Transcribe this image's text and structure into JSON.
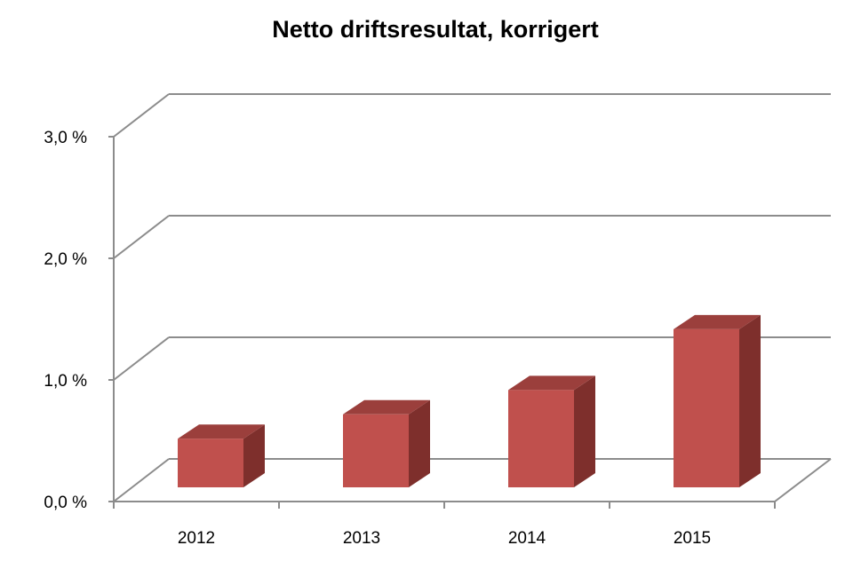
{
  "chart_data": {
    "type": "bar",
    "title": "Netto driftsresultat, korrigert",
    "categories": [
      "2012",
      "2013",
      "2014",
      "2015"
    ],
    "values": [
      0.4,
      0.6,
      0.8,
      1.3
    ],
    "yticks": [
      "0,0 %",
      "1,0 %",
      "2,0 %",
      "3,0 %"
    ],
    "ylim": [
      0,
      3.3
    ],
    "xlabel": "",
    "ylabel": "",
    "grid": true,
    "legend": "none",
    "colors": {
      "front": "#c0504d",
      "side": "#7e2f2c",
      "top": "#9b3f3c",
      "grid": "#8c8c8c"
    }
  }
}
